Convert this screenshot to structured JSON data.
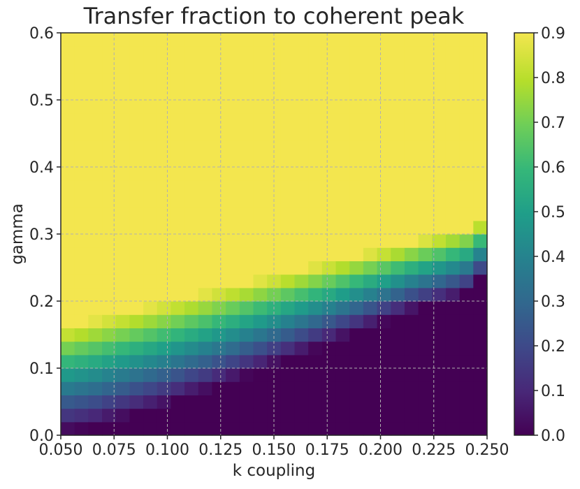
{
  "chart_data": {
    "type": "heatmap",
    "title": "Transfer fraction to coherent peak",
    "xlabel": "k coupling",
    "ylabel": "gamma",
    "xlim": [
      0.05,
      0.25
    ],
    "ylim": [
      0.0,
      0.6
    ],
    "x_ticks": [
      "0.050",
      "0.075",
      "0.100",
      "0.125",
      "0.150",
      "0.175",
      "0.200",
      "0.225",
      "0.250"
    ],
    "y_ticks": [
      "0.0",
      "0.1",
      "0.2",
      "0.3",
      "0.4",
      "0.5",
      "0.6"
    ],
    "colorbar": {
      "label": "",
      "range": [
        0.0,
        0.9
      ],
      "ticks": [
        "0.0",
        "0.1",
        "0.2",
        "0.3",
        "0.4",
        "0.5",
        "0.6",
        "0.7",
        "0.8",
        "0.9"
      ]
    },
    "colormap": "viridis",
    "grid": true,
    "grid_cols": 31,
    "grid_rows": 30,
    "boundary_description": "value is 0 below a lower boundary, ramps linearly to ~0.9 across a transition band, then saturates at ~0.9",
    "lower_boundary_gamma": [
      0.005,
      0.008,
      0.012,
      0.018,
      0.024,
      0.03,
      0.036,
      0.042,
      0.05,
      0.058,
      0.064,
      0.072,
      0.08,
      0.088,
      0.096,
      0.104,
      0.112,
      0.12,
      0.128,
      0.136,
      0.144,
      0.152,
      0.16,
      0.168,
      0.176,
      0.184,
      0.19,
      0.196,
      0.202,
      0.21,
      0.23
    ],
    "upper_boundary_gamma": [
      0.165,
      0.17,
      0.175,
      0.18,
      0.185,
      0.19,
      0.195,
      0.2,
      0.205,
      0.21,
      0.215,
      0.22,
      0.225,
      0.23,
      0.235,
      0.24,
      0.245,
      0.25,
      0.255,
      0.26,
      0.265,
      0.27,
      0.275,
      0.28,
      0.285,
      0.29,
      0.295,
      0.3,
      0.305,
      0.31,
      0.32
    ]
  }
}
